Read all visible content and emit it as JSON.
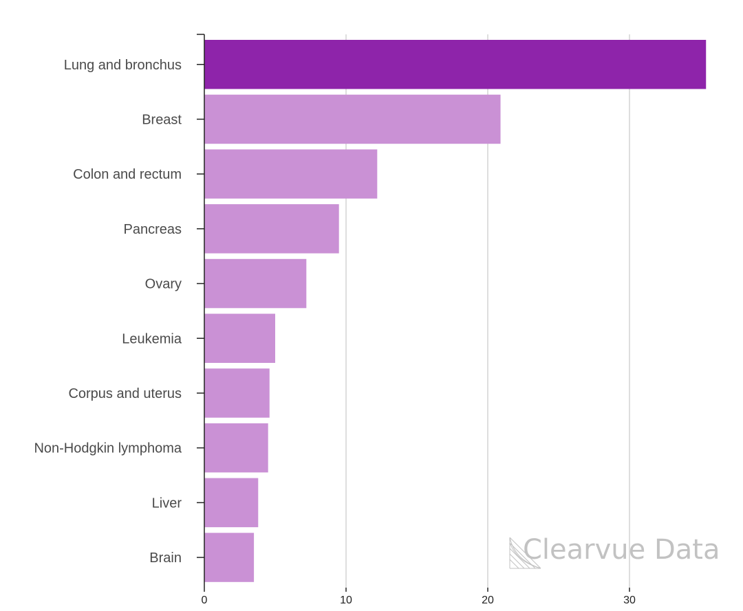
{
  "chart_data": {
    "type": "bar",
    "orientation": "horizontal",
    "categories": [
      "Lung and bronchus",
      "Breast",
      "Colon and rectum",
      "Pancreas",
      "Ovary",
      "Leukemia",
      "Corpus and uterus",
      "Non-Hodgkin lymphoma",
      "Liver",
      "Brain"
    ],
    "values": [
      35.4,
      20.9,
      12.2,
      9.5,
      7.2,
      5.0,
      4.6,
      4.5,
      3.8,
      3.5
    ],
    "highlight_index": 0,
    "xlim": [
      0,
      36
    ],
    "xticks": [
      0,
      10,
      20,
      30
    ],
    "grid": true,
    "title": "",
    "xlabel": "",
    "ylabel": ""
  },
  "colors": {
    "highlight": "#8e24aa",
    "bar": "#ca91d5",
    "grid": "#d4d4d4",
    "axis": "#222222"
  },
  "watermark": {
    "text": "Clearvue Data"
  }
}
